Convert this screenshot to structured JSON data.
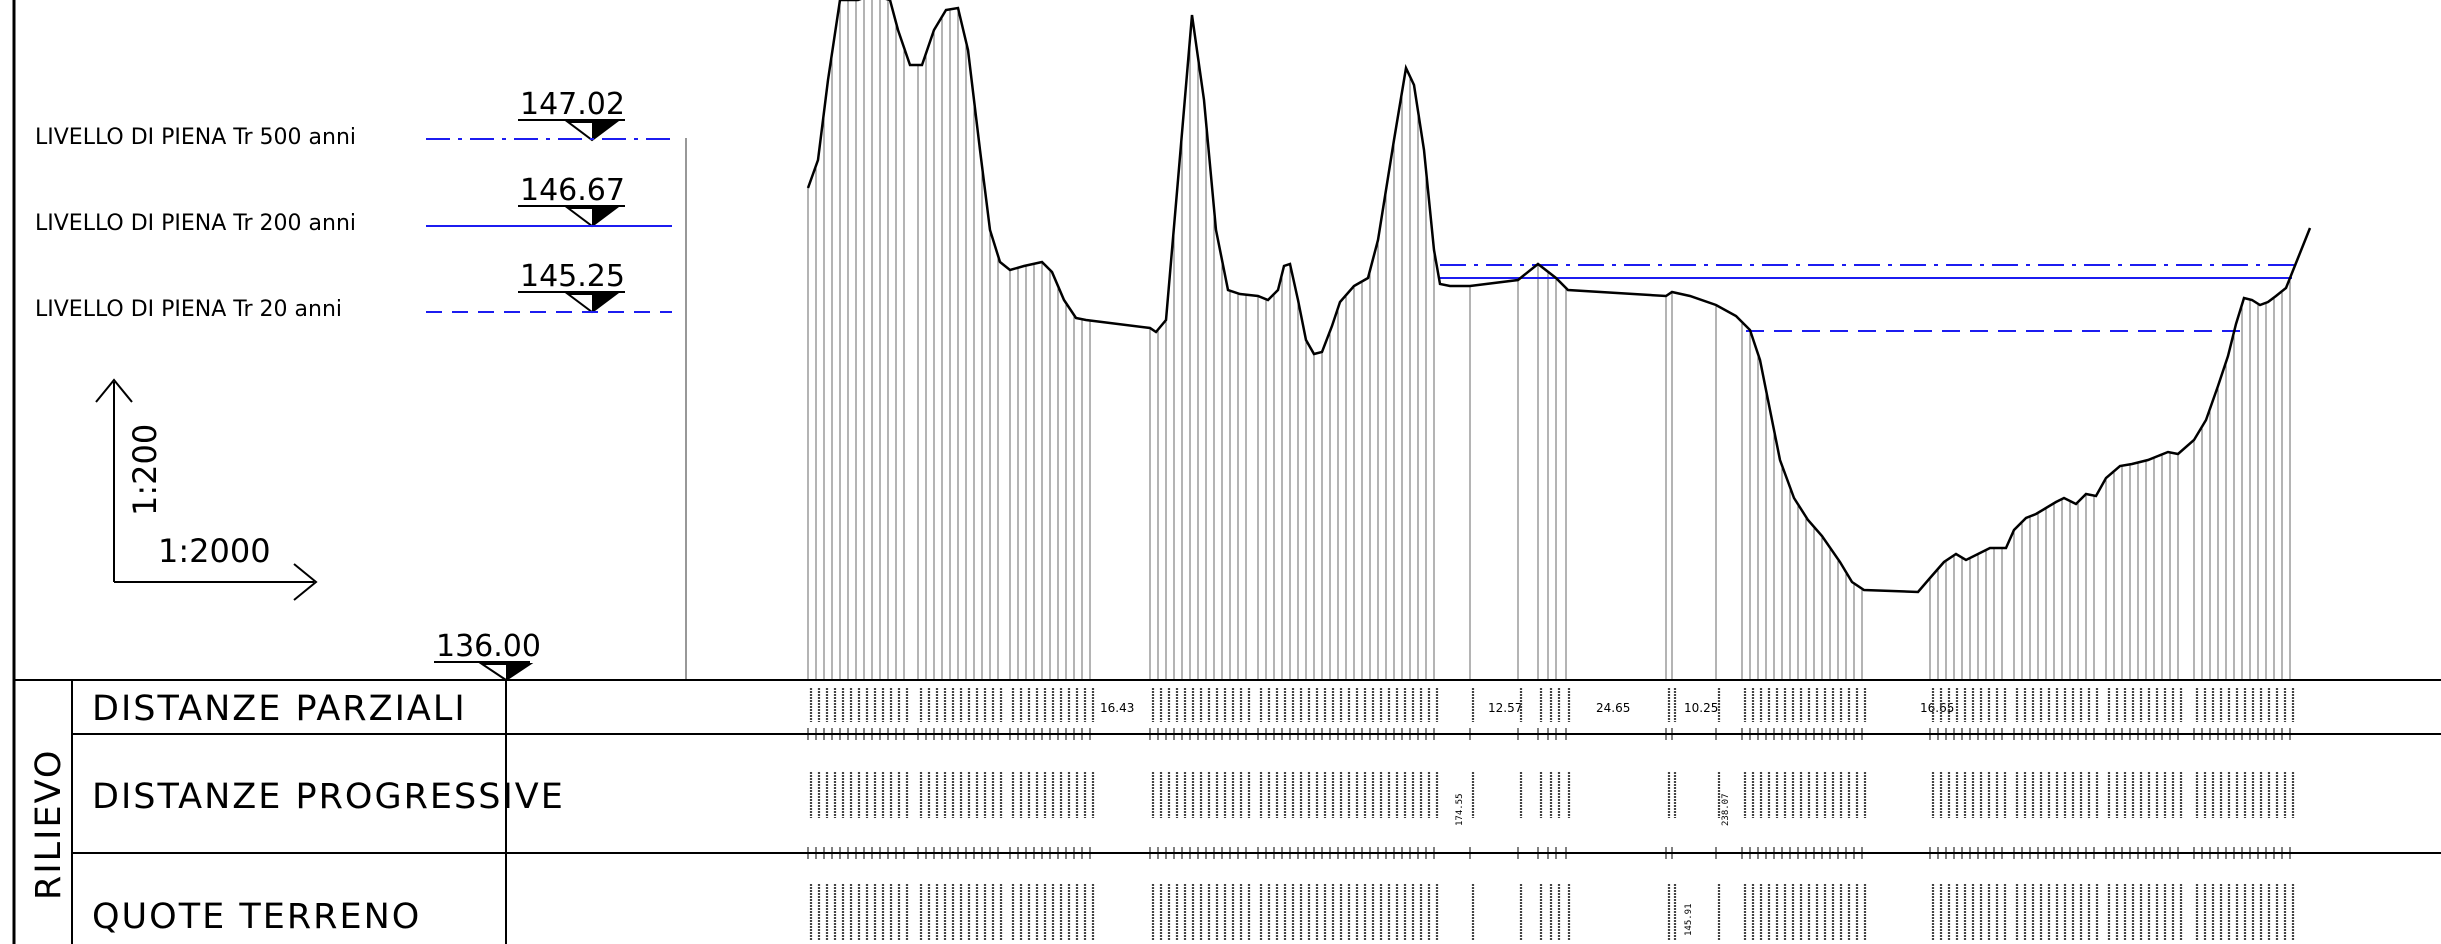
{
  "flood_levels": [
    {
      "label": "LIVELLO DI PIENA Tr 500 anni",
      "elevation": "147.02",
      "line_style": "dash-dot"
    },
    {
      "label": "LIVELLO DI PIENA Tr 200 anni",
      "elevation": "146.67",
      "line_style": "solid"
    },
    {
      "label": "LIVELLO DI PIENA Tr 20 anni",
      "elevation": "145.25",
      "line_style": "dashed"
    }
  ],
  "scales": {
    "vertical": "1:200",
    "horizontal": "1:2000"
  },
  "datum": "136.00",
  "table": {
    "group_label": "RILIEVO",
    "rows": [
      "DISTANZE PARZIALI",
      "DISTANZE PROGRESSIVE",
      "QUOTE TERRENO"
    ]
  },
  "partial_gap_labels": [
    "16.43",
    "12.57",
    "24.65",
    "10.25",
    "16.65"
  ],
  "progressive_labels": [
    "174.55",
    "238.07"
  ],
  "elevation_labels": [
    "145.91"
  ],
  "colors": {
    "flood_line": "#1c1cf0",
    "ink": "#000000",
    "vertical_lines": "#555555"
  }
}
